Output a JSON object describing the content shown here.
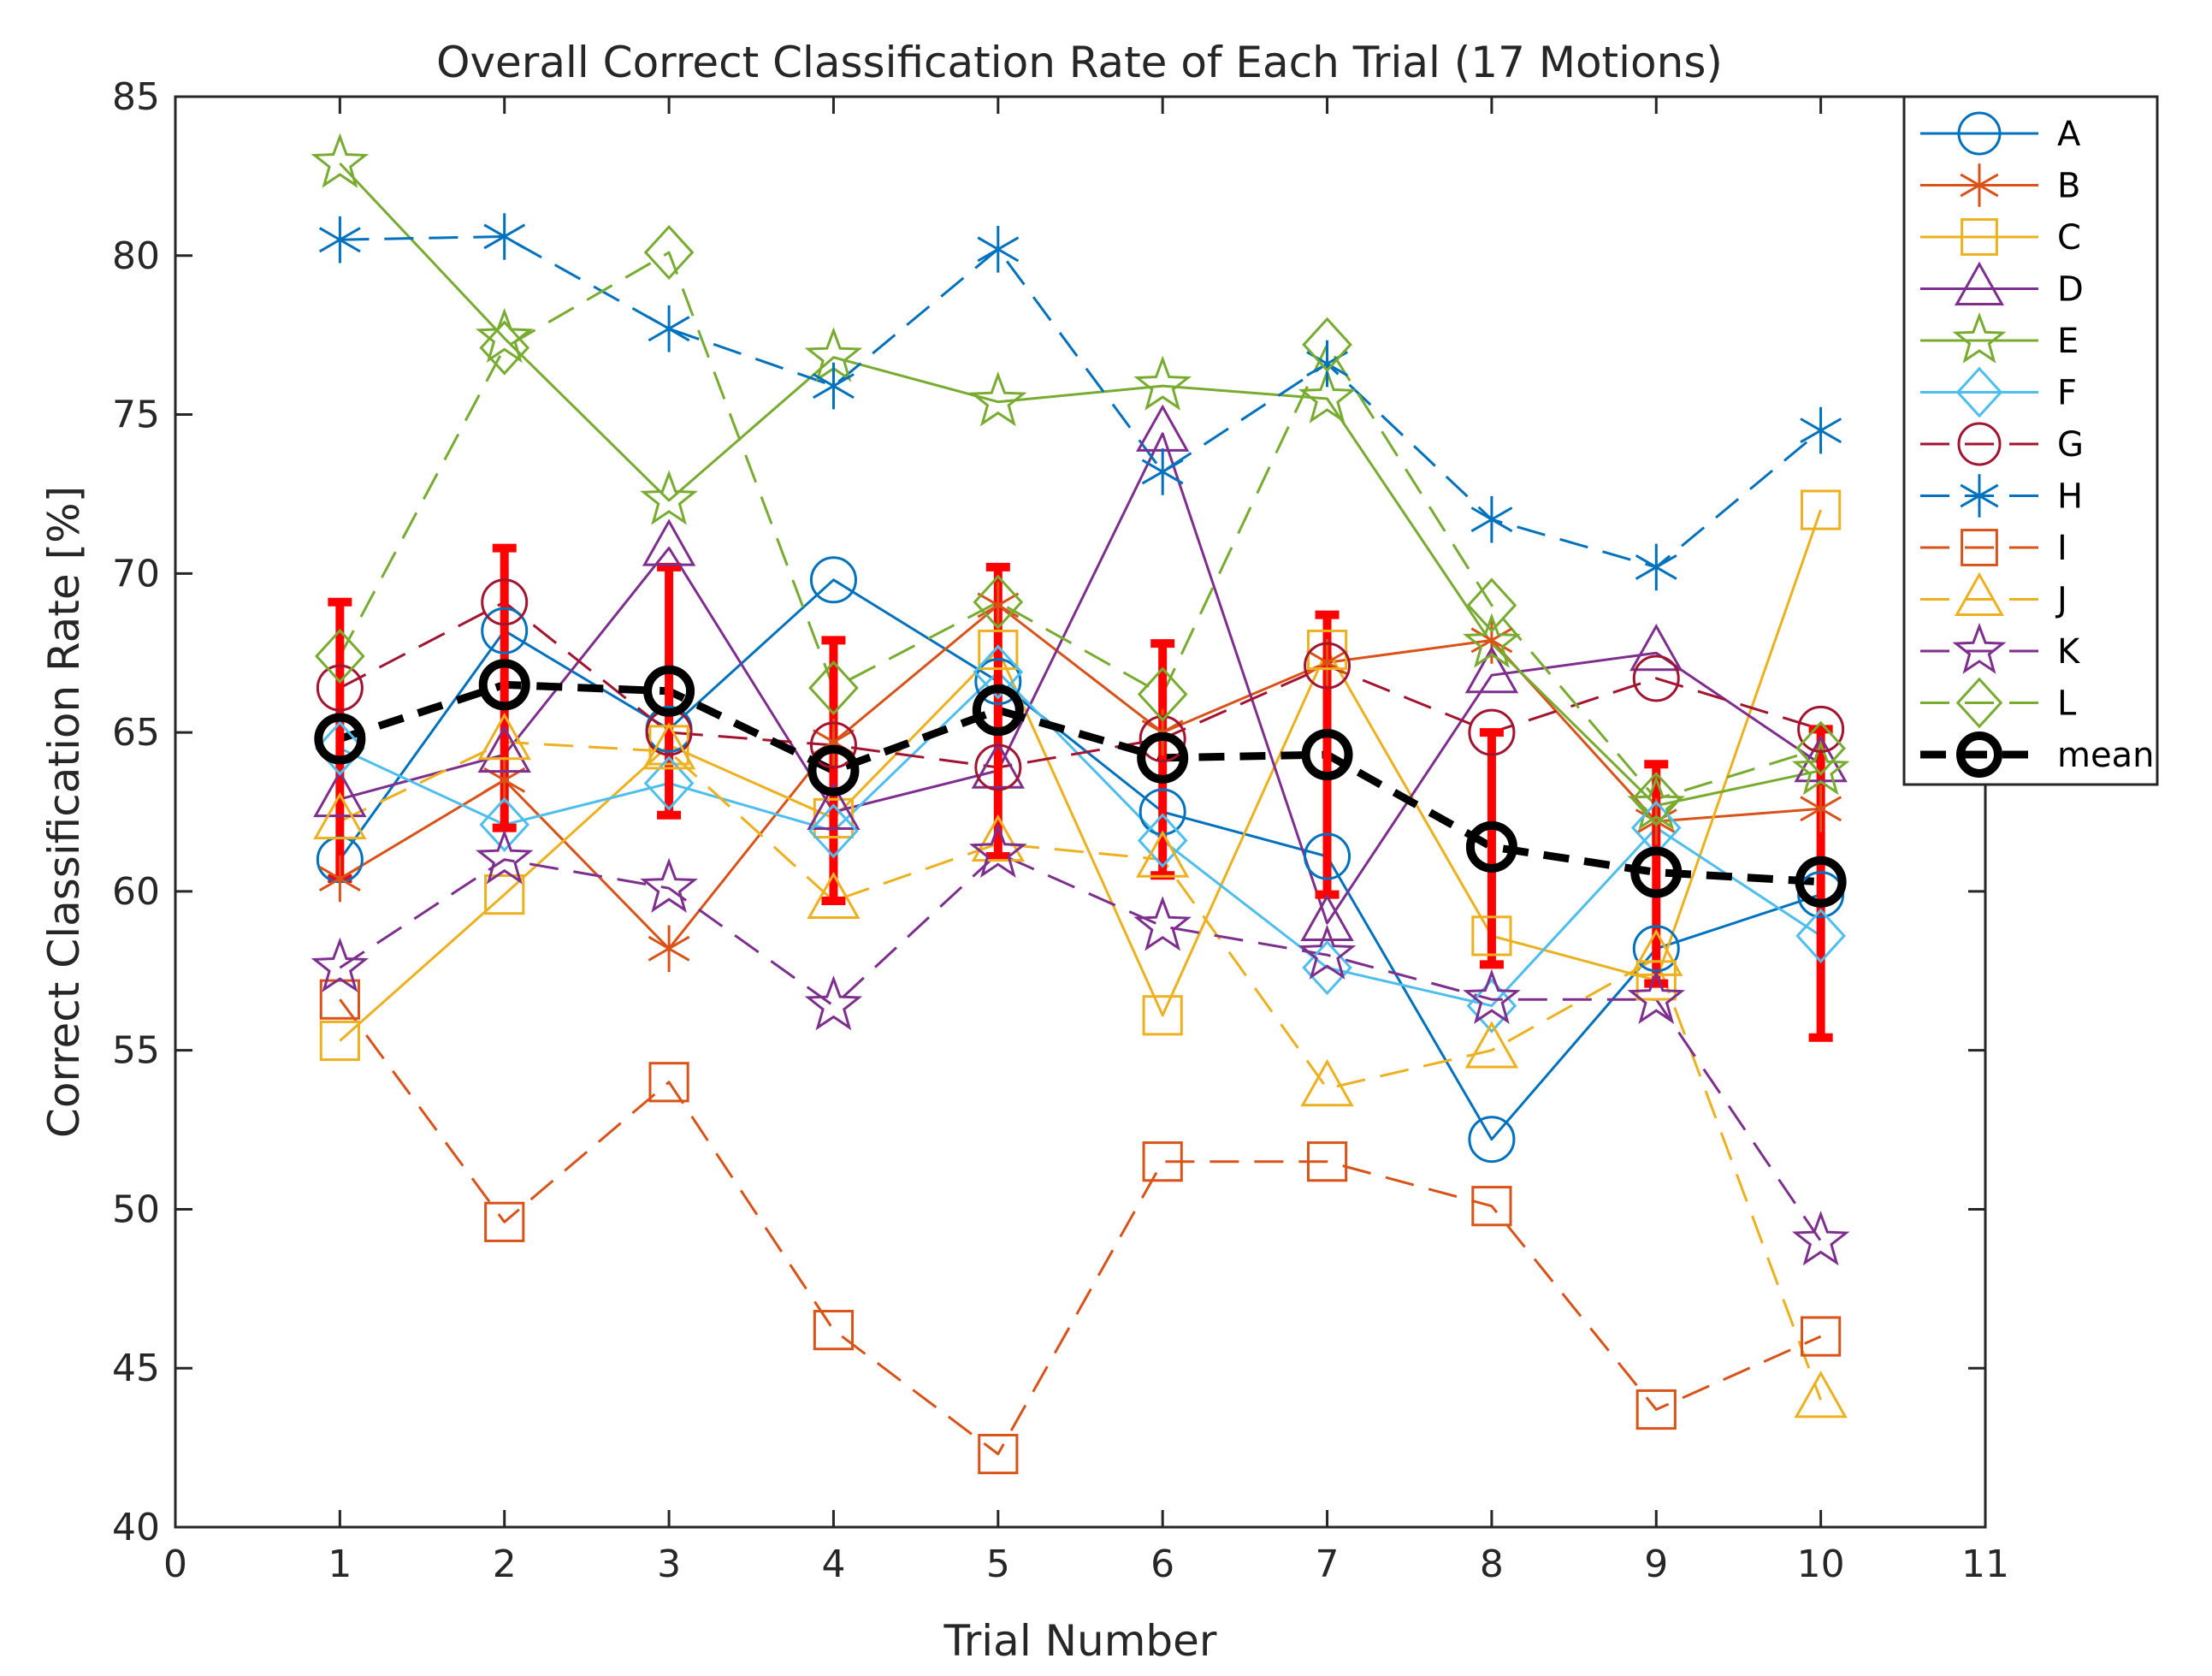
{
  "chart_data": {
    "type": "line",
    "title": "Overall Correct Classification Rate of Each Trial (17 Motions)",
    "xlabel": "Trial Number",
    "ylabel": "Correct Classification Rate [%]",
    "xlim": [
      0,
      11
    ],
    "ylim": [
      40,
      85
    ],
    "xticks": [
      0,
      1,
      2,
      3,
      4,
      5,
      6,
      7,
      8,
      9,
      10,
      11
    ],
    "yticks": [
      40,
      45,
      50,
      55,
      60,
      65,
      70,
      75,
      80,
      85
    ],
    "grid": false,
    "legend_position": "outside-top-right",
    "x": [
      1,
      2,
      3,
      4,
      5,
      6,
      7,
      8,
      9,
      10
    ],
    "series": [
      {
        "name": "A",
        "color": "#0072BD",
        "marker": "circle",
        "dash": "solid",
        "values": [
          61.0,
          68.2,
          65.1,
          69.8,
          66.6,
          62.5,
          61.1,
          52.2,
          58.2,
          59.9
        ]
      },
      {
        "name": "B",
        "color": "#D95319",
        "marker": "asterisk",
        "dash": "solid",
        "values": [
          60.4,
          63.5,
          58.2,
          64.7,
          69.0,
          65.0,
          67.2,
          67.9,
          62.2,
          62.6
        ]
      },
      {
        "name": "C",
        "color": "#EDB120",
        "marker": "square",
        "dash": "solid",
        "values": [
          55.3,
          59.9,
          64.6,
          62.3,
          67.6,
          56.1,
          67.6,
          58.6,
          57.2,
          72.0
        ]
      },
      {
        "name": "D",
        "color": "#7E2F8E",
        "marker": "triangle",
        "dash": "solid",
        "values": [
          62.9,
          64.3,
          70.8,
          62.5,
          63.8,
          74.4,
          59.0,
          66.8,
          67.5,
          64.0
        ]
      },
      {
        "name": "E",
        "color": "#77AC30",
        "marker": "pentagram",
        "dash": "solid",
        "values": [
          82.9,
          77.4,
          72.3,
          76.8,
          75.4,
          75.9,
          75.5,
          67.8,
          62.7,
          63.8
        ]
      },
      {
        "name": "F",
        "color": "#4DBEEE",
        "marker": "diamond",
        "dash": "solid",
        "values": [
          64.5,
          62.1,
          63.4,
          61.9,
          66.9,
          61.6,
          57.6,
          56.4,
          62.0,
          58.6
        ]
      },
      {
        "name": "G",
        "color": "#A2142F",
        "marker": "circle",
        "dash": "dashed",
        "values": [
          66.4,
          69.1,
          65.0,
          64.6,
          63.9,
          64.8,
          67.1,
          65.0,
          66.7,
          65.1
        ]
      },
      {
        "name": "H",
        "color": "#0072BD",
        "marker": "asterisk",
        "dash": "dashed",
        "values": [
          80.5,
          80.6,
          77.7,
          75.9,
          80.2,
          73.2,
          76.6,
          71.7,
          70.2,
          74.5
        ]
      },
      {
        "name": "I",
        "color": "#D95319",
        "marker": "square",
        "dash": "dashed",
        "values": [
          56.6,
          49.6,
          54.0,
          46.2,
          42.3,
          51.5,
          51.5,
          50.1,
          43.7,
          46.0
        ]
      },
      {
        "name": "J",
        "color": "#EDB120",
        "marker": "triangle",
        "dash": "dashed",
        "values": [
          62.2,
          64.7,
          64.4,
          59.7,
          61.5,
          61.0,
          53.8,
          55.0,
          57.9,
          44.0
        ]
      },
      {
        "name": "K",
        "color": "#7E2F8E",
        "marker": "pentagram",
        "dash": "dashed",
        "values": [
          57.6,
          61.0,
          60.1,
          56.4,
          61.2,
          58.9,
          58.0,
          56.6,
          56.6,
          49.0
        ]
      },
      {
        "name": "L",
        "color": "#77AC30",
        "marker": "diamond",
        "dash": "dashed",
        "values": [
          67.4,
          77.1,
          80.1,
          66.4,
          69.1,
          66.2,
          77.2,
          69.0,
          62.9,
          64.5
        ]
      },
      {
        "name": "mean",
        "color": "#000000",
        "marker": "circle",
        "dash": "bold-dashed",
        "values": [
          64.8,
          66.5,
          66.3,
          63.8,
          65.7,
          64.2,
          64.3,
          61.4,
          60.6,
          60.3
        ]
      }
    ],
    "error_bars": {
      "series": "mean",
      "color": "#FF0000",
      "lower": [
        60.4,
        62.0,
        62.4,
        59.7,
        61.1,
        60.5,
        59.9,
        57.7,
        57.1,
        55.4
      ],
      "upper": [
        69.1,
        70.8,
        70.2,
        67.9,
        70.2,
        67.8,
        68.7,
        65.0,
        64.0,
        65.1
      ]
    }
  }
}
